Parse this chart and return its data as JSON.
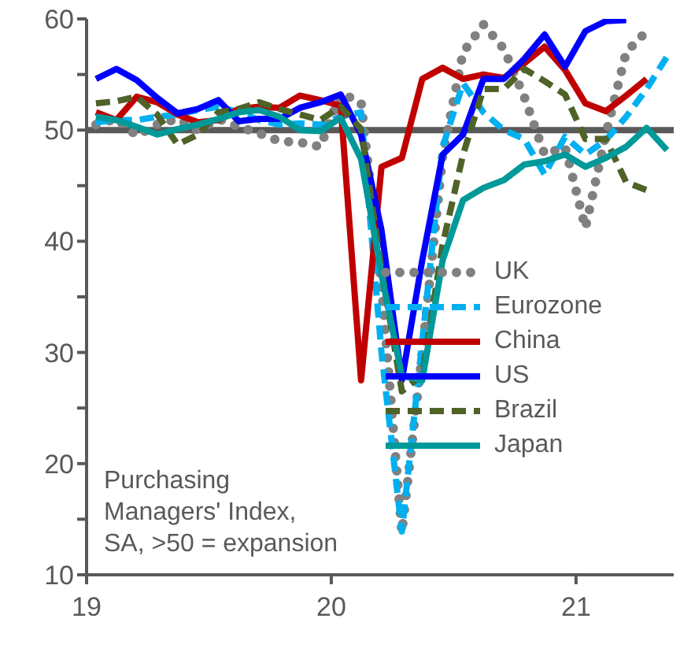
{
  "chart_data": {
    "type": "line",
    "x": [
      "2019-01-15",
      "2019-02-15",
      "2019-03-15",
      "2019-04-15",
      "2019-05-15",
      "2019-06-15",
      "2019-07-15",
      "2019-08-15",
      "2019-09-15",
      "2019-10-15",
      "2019-11-15",
      "2019-12-15",
      "2020-01-15",
      "2020-02-15",
      "2020-03-15",
      "2020-04-15",
      "2020-05-15",
      "2020-06-15",
      "2020-07-15",
      "2020-08-15",
      "2020-09-15",
      "2020-10-15",
      "2020-11-15",
      "2020-12-15",
      "2021-01-15",
      "2021-02-15",
      "2021-03-15",
      "2021-04-15",
      "2021-05-15"
    ],
    "series": [
      {
        "name": "UK",
        "color": "#808080",
        "line_style": "dotted",
        "values": [
          50.5,
          51,
          49.5,
          50.5,
          51,
          50,
          51,
          50.3,
          49.7,
          49,
          48.9,
          48.5,
          53.3,
          52.5,
          36,
          13.8,
          30,
          47.7,
          57,
          59.5,
          57.3,
          53,
          47.8,
          48.5,
          41.2,
          49.6,
          57,
          58.9,
          null
        ]
      },
      {
        "name": "Eurozone",
        "color": "#00b0f0",
        "line_style": "dashed",
        "values": [
          50.7,
          50.9,
          50.9,
          51.2,
          51.4,
          51.8,
          52.1,
          51.6,
          50.9,
          50.5,
          50.6,
          50.5,
          51.2,
          51.6,
          30,
          13.9,
          31,
          48.5,
          54.2,
          51.6,
          50,
          49.2,
          46,
          49.4,
          47.8,
          49.1,
          51.2,
          53.7,
          56.6
        ]
      },
      {
        "name": "China",
        "color": "#c00000",
        "line_style": "solid",
        "values": [
          51.6,
          50.9,
          53,
          52.5,
          51.4,
          50.7,
          50.9,
          51.9,
          52.1,
          52,
          53.1,
          52.7,
          52.2,
          27.5,
          46.7,
          47.5,
          54.6,
          55.6,
          54.6,
          55,
          54.7,
          56,
          57.5,
          55.4,
          52.4,
          51.7,
          53.1,
          54.6,
          null
        ]
      },
      {
        "name": "US",
        "color": "#0000ff",
        "line_style": "solid",
        "values": [
          54.6,
          55.5,
          54.5,
          52.9,
          51.5,
          51.9,
          52.7,
          50.8,
          51,
          51,
          52,
          52.5,
          53.2,
          49.6,
          41,
          27.5,
          38.3,
          47.8,
          49.6,
          54.6,
          54.6,
          56.4,
          58.6,
          55.7,
          58.9,
          59.8,
          59.9,
          null,
          null
        ]
      },
      {
        "name": "Brazil",
        "color": "#4f6228",
        "line_style": "dashed",
        "values": [
          52.4,
          52.6,
          53,
          51.4,
          48.7,
          49.6,
          51.6,
          51.9,
          52.5,
          51.9,
          51.4,
          50.9,
          52.1,
          50.1,
          37.5,
          26.5,
          28,
          39.7,
          47.8,
          53.7,
          53.7,
          55.5,
          54.4,
          53.2,
          49.2,
          49.2,
          45.3,
          44.6,
          null
        ]
      },
      {
        "name": "Japan",
        "color": "#009999",
        "line_style": "solid",
        "values": [
          51.2,
          50.9,
          50.3,
          49.6,
          50.1,
          50.5,
          51,
          51.6,
          51.8,
          51.2,
          50,
          49.9,
          51.1,
          47.4,
          37,
          27.9,
          27.5,
          38.3,
          43.7,
          44.8,
          45.5,
          46.9,
          47.2,
          47.8,
          46.7,
          47.5,
          48.5,
          50.2,
          48.2
        ]
      }
    ],
    "xlim": [
      "2019-01-01",
      "2021-05-25"
    ],
    "xticks": [
      {
        "value": "2019-01-01",
        "label": "19"
      },
      {
        "value": "2020-01-01",
        "label": "20"
      },
      {
        "value": "2021-01-01",
        "label": "21"
      }
    ],
    "ylim": [
      10,
      60
    ],
    "yticks": [
      10,
      {
        "value": 15,
        "label": null
      },
      20,
      {
        "value": 25,
        "label": null
      },
      30,
      {
        "value": 35,
        "label": null
      },
      40,
      {
        "value": 45,
        "label": null
      },
      50,
      {
        "value": 55,
        "label": null
      },
      60
    ],
    "ref_lines": [
      {
        "axis": "y",
        "value": 50,
        "color": "#595959"
      }
    ],
    "annotations": [
      "Purchasing Managers' Index, SA, >50 = expansion"
    ],
    "legend": "right",
    "grid": false
  }
}
